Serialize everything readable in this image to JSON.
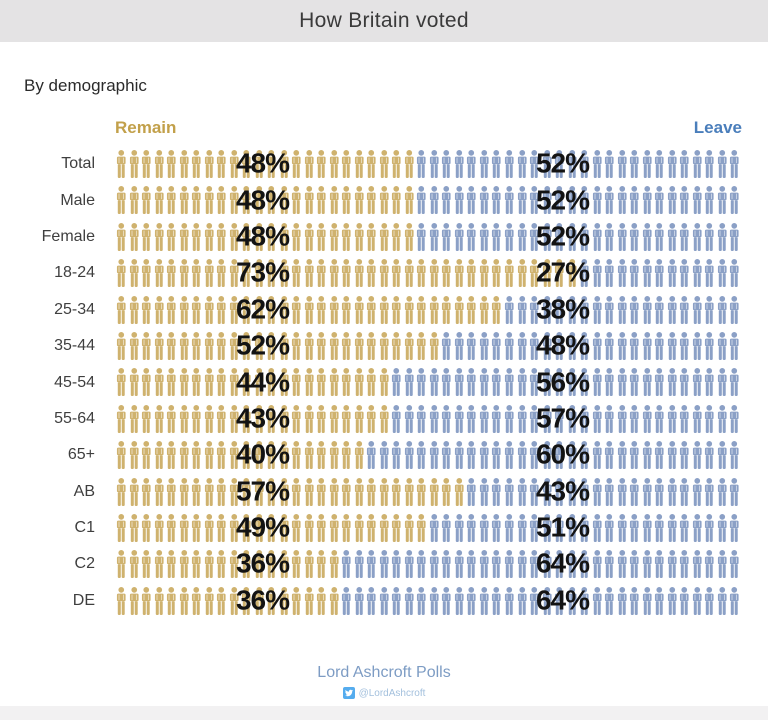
{
  "header": {
    "title": "How Britain voted"
  },
  "subtitle": "By demographic",
  "legend": {
    "remain_label": "Remain",
    "leave_label": "Leave"
  },
  "colors": {
    "remain_label": "#c2a04a",
    "leave_label": "#4a7ebb",
    "remain_icon": "#cfb26e",
    "leave_icon": "#8ba0c6",
    "header_bg": "#e4e3e4",
    "percent_text": "#131313",
    "source_text": "#7d9cc4",
    "twitter_brand": "#55acee"
  },
  "footer": {
    "source": "Lord Ashcroft Polls",
    "twitter_handle": "@LordAshcroft",
    "twitter_icon": "twitter-bird"
  },
  "chart_data": {
    "type": "bar",
    "subtype": "pictogram-stacked-percentage",
    "title": "How Britain voted",
    "subtitle": "By demographic",
    "unit": "%",
    "xlim": [
      0,
      100
    ],
    "legend_position": "top",
    "icons_per_row": 50,
    "categories": [
      "Total",
      "Male",
      "Female",
      "18-24",
      "25-34",
      "35-44",
      "45-54",
      "55-64",
      "65+",
      "AB",
      "C1",
      "C2",
      "DE"
    ],
    "series": [
      {
        "name": "Remain",
        "values": [
          48,
          48,
          48,
          73,
          62,
          52,
          44,
          43,
          40,
          57,
          49,
          36,
          36
        ]
      },
      {
        "name": "Leave",
        "values": [
          52,
          52,
          52,
          27,
          38,
          48,
          56,
          57,
          60,
          43,
          51,
          64,
          64
        ]
      }
    ]
  }
}
